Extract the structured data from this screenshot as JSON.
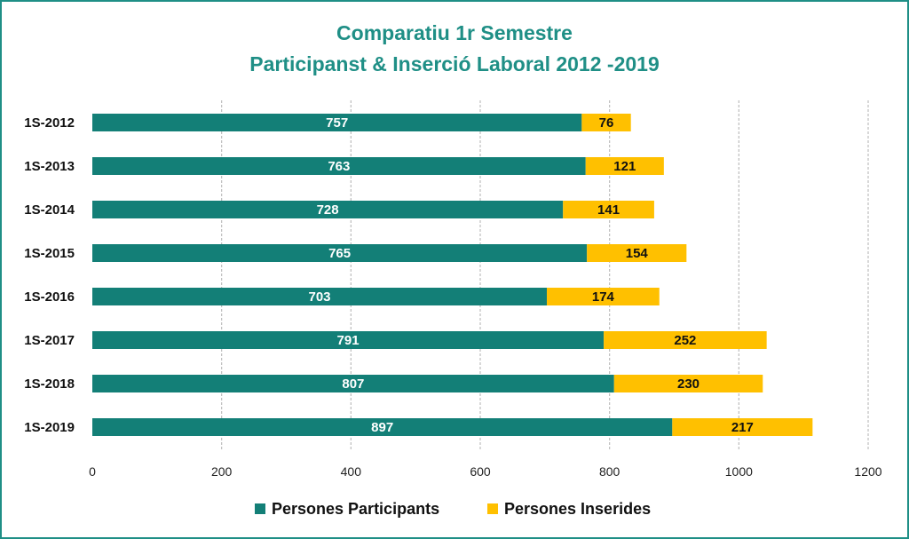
{
  "chart_data": {
    "type": "bar",
    "orientation": "horizontal",
    "stacked": true,
    "title": [
      "Comparatiu 1r Semestre",
      "Participanst & Inserció Laboral 2012 -2019"
    ],
    "categories": [
      "1S-2012",
      "1S-2013",
      "1S-2014",
      "1S-2015",
      "1S-2016",
      "1S-2017",
      "1S-2018",
      "1S-2019"
    ],
    "series": [
      {
        "name": "Persones Participants",
        "color": "#137f77",
        "values": [
          757,
          763,
          728,
          765,
          703,
          791,
          807,
          897
        ]
      },
      {
        "name": "Persones Inserides",
        "color": "#ffc000",
        "values": [
          76,
          121,
          141,
          154,
          174,
          252,
          230,
          217
        ]
      }
    ],
    "xlim": [
      0,
      1200
    ],
    "xticks": [
      "0",
      "200",
      "400",
      "600",
      "800",
      "1000",
      "1200"
    ],
    "grid": true,
    "legend": "bottom",
    "data_labels": true,
    "frame_color": "#1f8f86"
  }
}
